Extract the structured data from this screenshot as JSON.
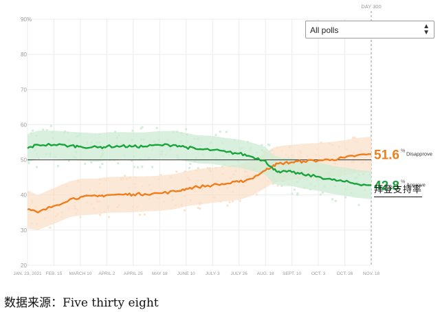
{
  "colors": {
    "approve": "#19a33b",
    "disapprove": "#f07d1c",
    "approve_band": "#cdebd4",
    "disapprove_band": "#fbe0c9",
    "grid": "#ececec",
    "axis_text": "#9a9a9a"
  },
  "dropdown": {
    "selected": "All polls",
    "arrow_icon": "up-down-arrows-icon"
  },
  "day_marker": "DAY 300",
  "annotation_cn": "拜登支持率",
  "source_note": "数据来源：Five thirty eight",
  "chart_data": {
    "type": "line",
    "x_start": "2021-01-23",
    "x_end": "2021-11-18",
    "ylim": [
      20,
      90
    ],
    "yticks": [
      20,
      30,
      40,
      50,
      60,
      70,
      80,
      90
    ],
    "ytick_labels": [
      "20",
      "30",
      "40",
      "50",
      "60",
      "70",
      "80",
      "90%"
    ],
    "reference_line": 50,
    "xtick_labels": [
      "JAN. 23, 2021",
      "FEB. 15",
      "MARCH 10",
      "APRIL 2",
      "APRIL 25",
      "MAY 18",
      "JUNE 10",
      "JULY 3",
      "JULY 26",
      "AUG. 18",
      "SEPT. 10",
      "OCT. 3",
      "OCT. 26",
      "NOV. 18"
    ],
    "x": [
      "2021-01-23",
      "2021-02-01",
      "2021-02-15",
      "2021-03-01",
      "2021-03-10",
      "2021-03-25",
      "2021-04-02",
      "2021-04-15",
      "2021-04-25",
      "2021-05-05",
      "2021-05-18",
      "2021-06-01",
      "2021-06-10",
      "2021-06-20",
      "2021-07-03",
      "2021-07-15",
      "2021-07-26",
      "2021-08-05",
      "2021-08-18",
      "2021-08-25",
      "2021-09-01",
      "2021-09-10",
      "2021-09-20",
      "2021-10-03",
      "2021-10-15",
      "2021-10-26",
      "2021-11-05",
      "2021-11-18"
    ],
    "series": [
      {
        "name": "Disapprove",
        "final_label": "51.6",
        "values": [
          35.9,
          35.0,
          36.9,
          38.8,
          39.4,
          39.6,
          40.0,
          40.1,
          40.2,
          40.3,
          40.5,
          41.0,
          41.8,
          42.3,
          42.8,
          43.2,
          43.7,
          44.6,
          47.0,
          48.5,
          49.0,
          49.3,
          49.6,
          49.8,
          50.1,
          50.6,
          51.2,
          51.6
        ],
        "band_lower": [
          30.5,
          30.0,
          31.8,
          33.7,
          34.2,
          34.5,
          34.9,
          35.0,
          35.1,
          35.3,
          35.5,
          36.0,
          36.8,
          37.2,
          37.8,
          38.2,
          38.6,
          39.6,
          42.0,
          43.5,
          44.0,
          44.3,
          44.6,
          44.8,
          45.1,
          45.6,
          46.2,
          46.6
        ],
        "band_upper": [
          41.3,
          40.0,
          42.0,
          43.9,
          44.6,
          44.7,
          45.1,
          45.2,
          45.3,
          45.3,
          45.5,
          46.0,
          46.8,
          47.4,
          47.8,
          48.2,
          48.8,
          49.6,
          52.0,
          53.5,
          54.0,
          54.3,
          54.6,
          54.8,
          55.1,
          55.6,
          56.2,
          56.6
        ]
      },
      {
        "name": "Approve",
        "final_label": "42.8",
        "values": [
          53.3,
          54.3,
          54.3,
          54.0,
          53.8,
          53.5,
          53.8,
          53.9,
          53.8,
          53.8,
          54.2,
          54.2,
          53.6,
          53.0,
          52.8,
          52.2,
          51.8,
          51.0,
          49.7,
          47.2,
          46.6,
          46.5,
          45.8,
          45.2,
          44.3,
          43.8,
          43.2,
          42.8
        ],
        "band_lower": [
          49.3,
          50.3,
          50.3,
          50.0,
          49.8,
          49.5,
          49.8,
          49.9,
          49.8,
          49.8,
          50.2,
          50.2,
          49.6,
          49.0,
          48.8,
          48.2,
          47.8,
          47.0,
          45.7,
          43.2,
          42.6,
          42.5,
          41.8,
          41.2,
          40.3,
          39.8,
          39.2,
          38.8
        ],
        "band_upper": [
          57.3,
          58.3,
          58.3,
          58.0,
          57.8,
          57.5,
          57.8,
          57.9,
          57.8,
          57.8,
          58.2,
          58.2,
          57.6,
          57.0,
          56.8,
          56.2,
          55.8,
          55.0,
          53.7,
          51.2,
          50.6,
          50.5,
          49.8,
          49.2,
          48.3,
          47.8,
          47.2,
          46.8
        ]
      }
    ]
  }
}
